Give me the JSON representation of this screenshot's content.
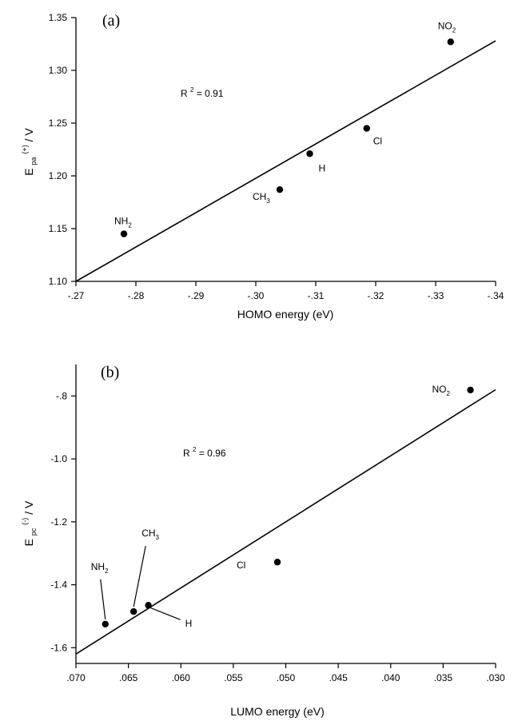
{
  "chart_data": [
    {
      "type": "scatter",
      "panel_label": "(a)",
      "xlabel": "HOMO energy (eV)",
      "ylabel": "E_pa^(+) / V",
      "ylabel_main": "E",
      "ylabel_sub": "pa",
      "ylabel_sup": "(+)",
      "ylabel_unit": " / V",
      "r2_prefix": "R",
      "r2_sup": "2",
      "r2_value": " = 0.91",
      "xlim": [
        -0.27,
        -0.34
      ],
      "ylim": [
        1.1,
        1.35
      ],
      "x_ticks": [
        -0.27,
        -0.28,
        -0.29,
        -0.3,
        -0.31,
        -0.32,
        -0.33,
        -0.34
      ],
      "x_tick_labels": [
        "-.27",
        "-.28",
        "-.29",
        "-.30",
        "-.31",
        "-.32",
        "-.33",
        "-.34"
      ],
      "y_ticks": [
        1.1,
        1.15,
        1.2,
        1.25,
        1.3,
        1.35
      ],
      "y_tick_labels": [
        "1.10",
        "1.15",
        "1.20",
        "1.25",
        "1.30",
        "1.35"
      ],
      "points": [
        {
          "label": "NH",
          "label_sub": "2",
          "x": -0.278,
          "y": 1.145
        },
        {
          "label": "CH",
          "label_sub": "3",
          "x": -0.304,
          "y": 1.187
        },
        {
          "label": "H",
          "label_sub": "",
          "x": -0.309,
          "y": 1.221
        },
        {
          "label": "Cl",
          "label_sub": "",
          "x": -0.3185,
          "y": 1.245
        },
        {
          "label": "NO",
          "label_sub": "2",
          "x": -0.3325,
          "y": 1.327
        }
      ],
      "fit_line": [
        [
          -0.27,
          1.1
        ],
        [
          -0.34,
          1.328
        ]
      ]
    },
    {
      "type": "scatter",
      "panel_label": "(b)",
      "xlabel": "LUMO energy (eV)",
      "ylabel": "E_pc^(-) / V",
      "ylabel_main": "E",
      "ylabel_sub": "pc",
      "ylabel_sup": "(-)",
      "ylabel_unit": " / V",
      "r2_prefix": "R",
      "r2_sup": "2",
      "r2_value": " = 0.96",
      "xlim": [
        0.07,
        0.03
      ],
      "ylim": [
        -1.65,
        -0.7
      ],
      "x_ticks": [
        0.07,
        0.065,
        0.06,
        0.055,
        0.05,
        0.045,
        0.04,
        0.035,
        0.03
      ],
      "x_tick_labels": [
        ".070",
        ".065",
        ".060",
        ".055",
        ".050",
        ".045",
        ".040",
        ".035",
        ".030"
      ],
      "y_ticks": [
        -1.6,
        -1.4,
        -1.2,
        -1.0,
        -0.8
      ],
      "y_tick_labels": [
        "-1.6",
        "-1.4",
        "-1.2",
        "-1.0",
        "-.8"
      ],
      "points": [
        {
          "label": "NH",
          "label_sub": "2",
          "x": 0.0672,
          "y": -1.525
        },
        {
          "label": "CH",
          "label_sub": "3",
          "x": 0.0645,
          "y": -1.485
        },
        {
          "label": "H",
          "label_sub": "",
          "x": 0.0631,
          "y": -1.465
        },
        {
          "label": "Cl",
          "label_sub": "",
          "x": 0.0508,
          "y": -1.328
        },
        {
          "label": "NO",
          "label_sub": "2",
          "x": 0.0324,
          "y": -0.781
        }
      ],
      "fit_line": [
        [
          0.07,
          -1.62
        ],
        [
          0.03,
          -0.78
        ]
      ]
    }
  ]
}
